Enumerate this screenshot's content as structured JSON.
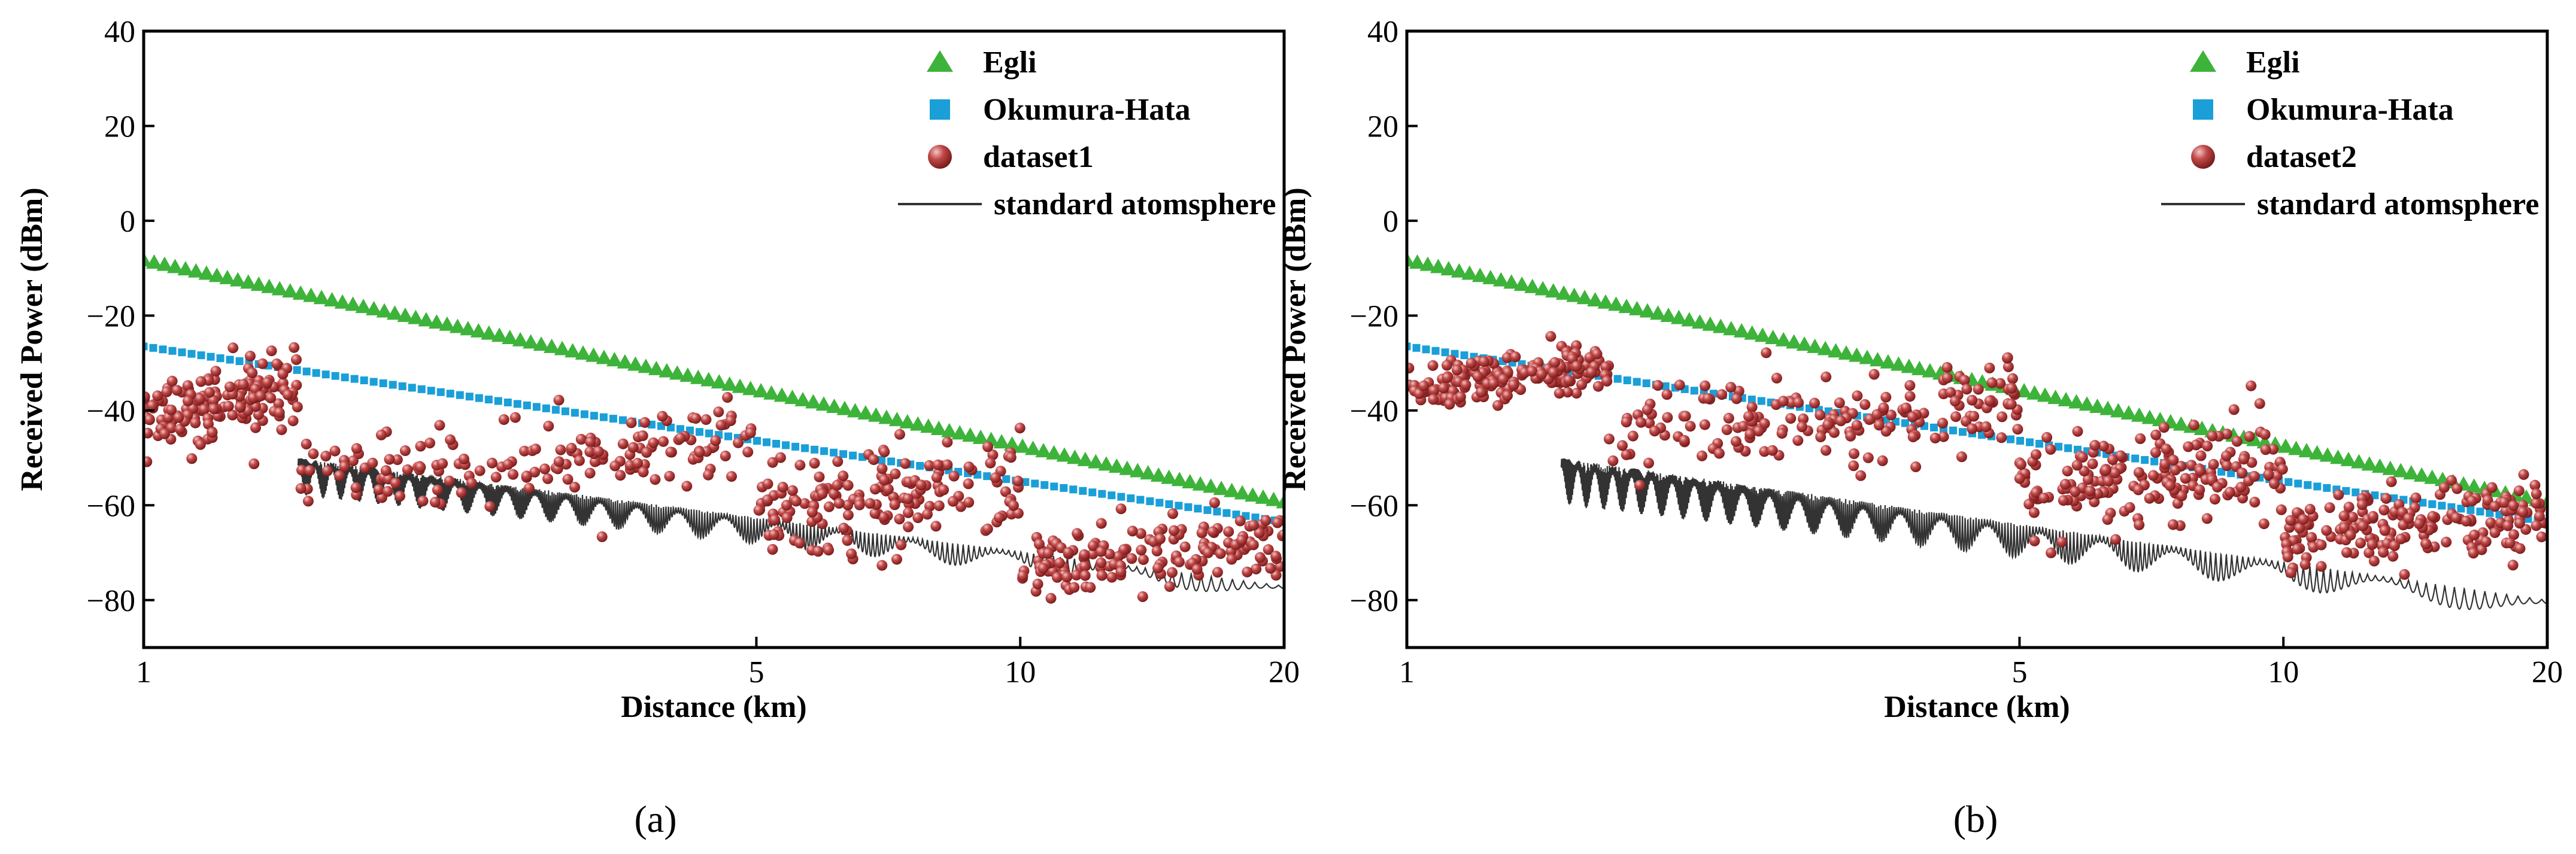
{
  "colors": {
    "egli": "#3db33a",
    "okumura": "#1a9fd8",
    "dataset": "#b03a3a",
    "standard": "#333333"
  },
  "chart_data": [
    {
      "type": "scatter",
      "panel_label": "(a)",
      "xlabel": "Distance (km)",
      "ylabel": "Received Power (dBm)",
      "x_scale": "log",
      "xlim": [
        1,
        20
      ],
      "ylim": [
        -90,
        40
      ],
      "x_ticks": [
        1,
        5,
        10,
        20
      ],
      "y_ticks": [
        -80,
        -60,
        -40,
        -20,
        0,
        20,
        40
      ],
      "grid": false,
      "legend_position": "top-right",
      "legend": [
        "Egli",
        "Okumura-Hata",
        "dataset1",
        "standard atomsphere"
      ],
      "series": [
        {
          "name": "Egli",
          "kind": "triangle-markers",
          "x_range": [
            1,
            20
          ],
          "y_start": -8.5,
          "y_end": -59.5
        },
        {
          "name": "Okumura-Hata",
          "kind": "square-markers",
          "x_range": [
            1,
            20
          ],
          "y_start": -26.5,
          "y_end": -63.5
        },
        {
          "name": "dataset1",
          "kind": "sphere-markers",
          "sample_count": 650,
          "dense_regions": [
            {
              "x": [
                1.0,
                1.5
              ],
              "y_center": -38,
              "spread": 6
            },
            {
              "x": [
                1.5,
                5.0
              ],
              "y_center": -50,
              "spread": 7
            },
            {
              "x": [
                5.0,
                10.0
              ],
              "y_center": -58,
              "spread": 9
            },
            {
              "x": [
                10.0,
                20.0
              ],
              "y_center": -70,
              "spread": 6
            }
          ]
        },
        {
          "name": "standard atomsphere",
          "kind": "oscillating-line",
          "x_range": [
            1.5,
            20
          ],
          "y_start": -50,
          "y_end": -77,
          "oscillation_amplitude_dB": [
            8,
            3
          ]
        }
      ]
    },
    {
      "type": "scatter",
      "panel_label": "(b)",
      "xlabel": "Distance (km)",
      "ylabel": "Received Power (dBm)",
      "x_scale": "log",
      "xlim": [
        1,
        20
      ],
      "ylim": [
        -90,
        40
      ],
      "x_ticks": [
        1,
        5,
        10,
        20
      ],
      "y_ticks": [
        -80,
        -60,
        -40,
        -20,
        0,
        20,
        40
      ],
      "grid": false,
      "legend_position": "top-right",
      "legend": [
        "Egli",
        "Okumura-Hata",
        "dataset2",
        "standard atomsphere"
      ],
      "series": [
        {
          "name": "Egli",
          "kind": "triangle-markers",
          "x_range": [
            1,
            20
          ],
          "y_start": -8.5,
          "y_end": -59.5
        },
        {
          "name": "Okumura-Hata",
          "kind": "square-markers",
          "x_range": [
            1,
            20
          ],
          "y_start": -26.5,
          "y_end": -63.5
        },
        {
          "name": "dataset2",
          "kind": "sphere-markers",
          "sample_count": 750,
          "dense_regions": [
            {
              "x": [
                1.0,
                1.7
              ],
              "y_center": -33,
              "spread": 4
            },
            {
              "x": [
                1.7,
                5.0
              ],
              "y_center": -42,
              "spread": 8
            },
            {
              "x": [
                5.0,
                10.0
              ],
              "y_center": -54,
              "spread": 8
            },
            {
              "x": [
                10.0,
                20.0
              ],
              "y_center": -64,
              "spread": 6
            }
          ]
        },
        {
          "name": "standard atomsphere",
          "kind": "oscillating-line",
          "x_range": [
            1.5,
            20
          ],
          "y_start": -50,
          "y_end": -80,
          "oscillation_amplitude_dB": [
            10,
            4
          ]
        }
      ]
    }
  ]
}
